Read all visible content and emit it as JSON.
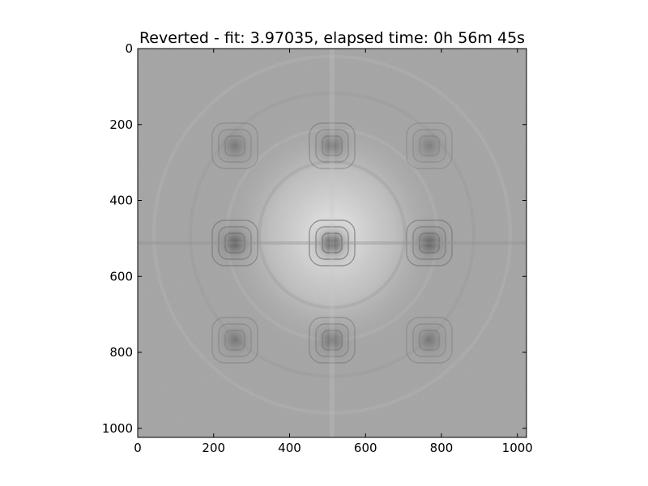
{
  "chart_data": {
    "type": "heatmap",
    "title": "Reverted - fit: 3.97035, elapsed time: 0h 56m 45s",
    "xlabel": "",
    "ylabel": "",
    "xlim": [
      0,
      1024
    ],
    "ylim": [
      1024,
      0
    ],
    "colormap": "gray",
    "x_ticks": [
      0,
      200,
      400,
      600,
      800,
      1000
    ],
    "y_ticks": [
      0,
      200,
      400,
      600,
      800,
      1000
    ],
    "image_size": [
      1024,
      1024
    ],
    "grid": false,
    "legend": "none",
    "features": {
      "dark_spot_centers": [
        {
          "x": 256,
          "y": 256,
          "strength": 0.35
        },
        {
          "x": 512,
          "y": 256,
          "strength": 0.45
        },
        {
          "x": 768,
          "y": 256,
          "strength": 0.3
        },
        {
          "x": 256,
          "y": 512,
          "strength": 0.55
        },
        {
          "x": 512,
          "y": 512,
          "strength": 0.75
        },
        {
          "x": 768,
          "y": 512,
          "strength": 0.55
        },
        {
          "x": 256,
          "y": 768,
          "strength": 0.35
        },
        {
          "x": 512,
          "y": 768,
          "strength": 0.45
        },
        {
          "x": 768,
          "y": 768,
          "strength": 0.35
        }
      ],
      "bright_halo_center": {
        "x": 512,
        "y": 490
      }
    },
    "colors": {
      "background_gray": "#a4a4a4",
      "halo_light": "#ececec",
      "spot_dark": "#2a2a2a"
    }
  }
}
